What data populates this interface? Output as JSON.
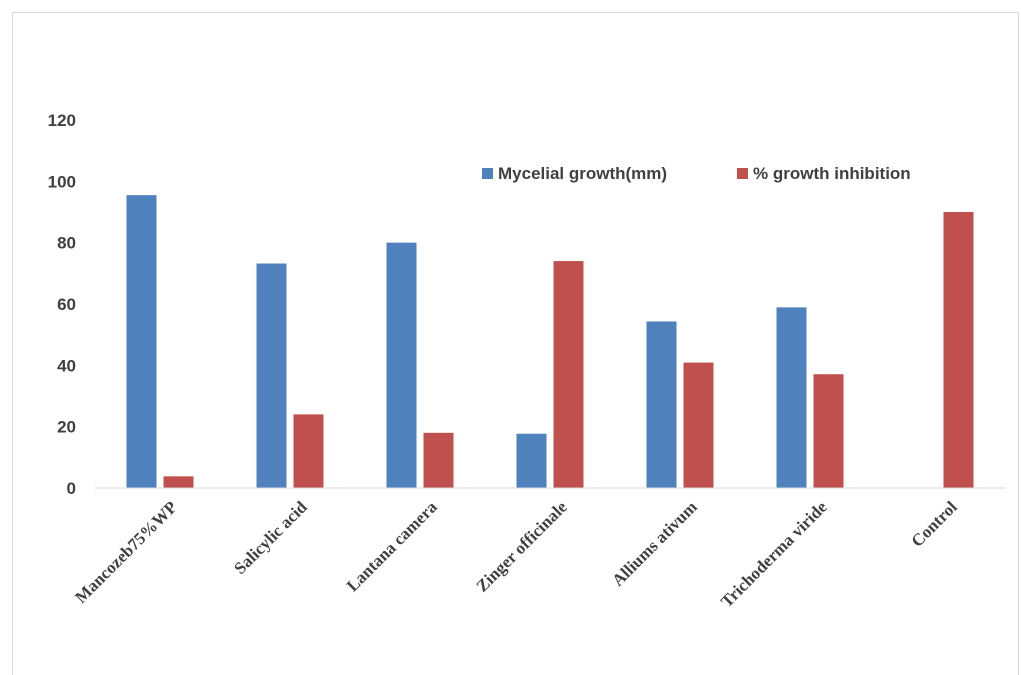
{
  "chart_data": {
    "type": "bar",
    "title": "",
    "xlabel": "",
    "ylabel": "",
    "categories": [
      "Mancozeb75%WP",
      "Salicylic acid",
      "Lantana camera",
      "Zinger officinale",
      "Alliums ativum",
      "Trichoderma  viride",
      "Control"
    ],
    "series": [
      {
        "name": "Mycelial growth(mm)",
        "color": "#4f81bd",
        "values": [
          95.5,
          73.2,
          80,
          17.7,
          54.3,
          58.9,
          0
        ]
      },
      {
        "name": "% growth inhibition",
        "color": "#c0504d",
        "values": [
          3.8,
          24,
          18,
          74,
          40.9,
          37.1,
          90
        ]
      }
    ],
    "ylim": [
      0,
      120
    ],
    "yticks": [
      "0",
      "20",
      "40",
      "60",
      "80",
      "100",
      "120"
    ],
    "grid": false,
    "legend_position": "top-right"
  }
}
